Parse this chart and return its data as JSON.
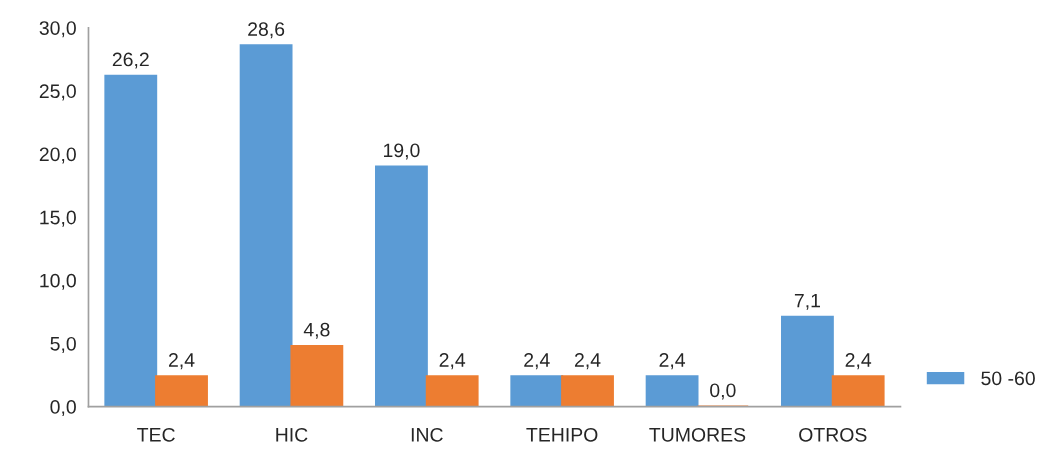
{
  "chart_data": {
    "type": "bar",
    "categories": [
      "TEC",
      "HIC",
      "INC",
      "TEHIPO",
      "TUMORES",
      "OTROS"
    ],
    "series": [
      {
        "name": "50 -60",
        "color": "#5b9bd5",
        "values": [
          26.2,
          28.6,
          19.0,
          2.4,
          2.4,
          7.1
        ],
        "value_labels": [
          "26,2",
          "28,6",
          "19,0",
          "2,4",
          "2,4",
          "7,1"
        ]
      },
      {
        "color": "#ed7d31",
        "values": [
          2.4,
          4.8,
          2.4,
          2.4,
          0.0,
          2.4
        ],
        "value_labels": [
          "2,4",
          "4,8",
          "2,4",
          "2,4",
          "0,0",
          "2,4"
        ]
      }
    ],
    "ylim": [
      0,
      30
    ],
    "yticks": [
      {
        "value": 0,
        "label": "0,0"
      },
      {
        "value": 5,
        "label": "5,0"
      },
      {
        "value": 10,
        "label": "10,0"
      },
      {
        "value": 15,
        "label": "15,0"
      },
      {
        "value": 20,
        "label": "20,0"
      },
      {
        "value": 25,
        "label": "25,0"
      },
      {
        "value": 30,
        "label": "30,0"
      }
    ],
    "grid": false,
    "legend": "bottom right"
  }
}
